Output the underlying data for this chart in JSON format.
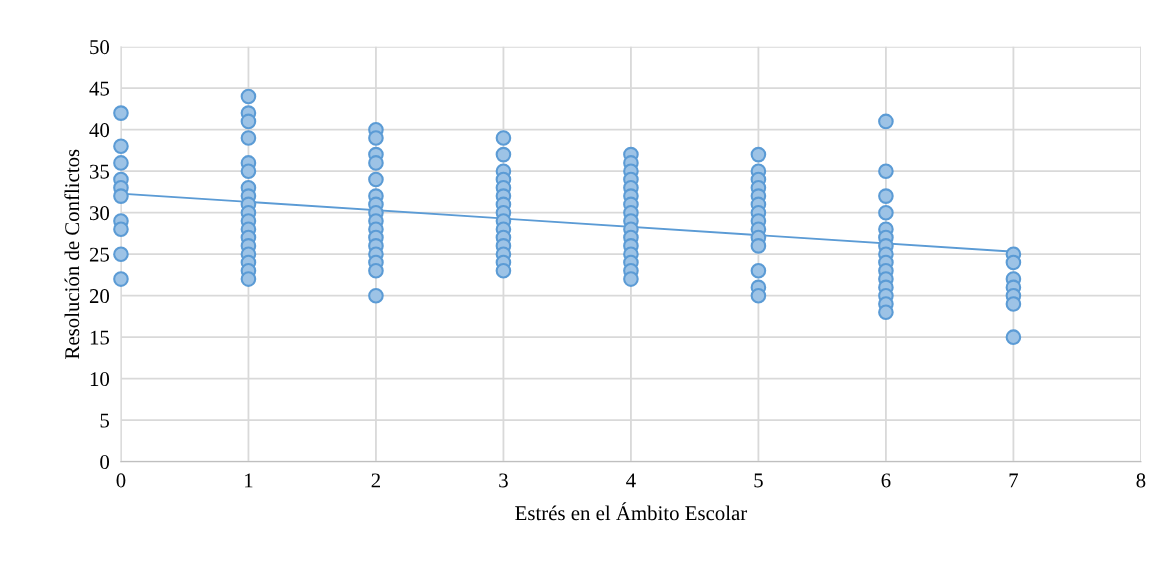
{
  "chart_data": {
    "type": "scatter",
    "xlabel": "Estrés en el Ámbito Escolar",
    "ylabel": "Resolución de Conflictos",
    "xlim": [
      0,
      8
    ],
    "xticks": [
      0,
      1,
      2,
      3,
      4,
      5,
      6,
      7,
      8
    ],
    "ylim": [
      0,
      50
    ],
    "yticks": [
      0,
      5,
      10,
      15,
      20,
      25,
      30,
      35,
      40,
      45,
      50
    ],
    "grid": true,
    "series": [
      {
        "marker": "circle",
        "color": "#9dc3e6",
        "x": [
          0,
          0,
          0,
          0,
          0,
          0,
          0,
          0,
          0,
          0,
          1,
          1,
          1,
          1,
          1,
          1,
          1,
          1,
          1,
          1,
          1,
          1,
          1,
          1,
          1,
          1,
          1,
          1,
          2,
          2,
          2,
          2,
          2,
          2,
          2,
          2,
          2,
          2,
          2,
          2,
          2,
          2,
          2,
          2,
          3,
          3,
          3,
          3,
          3,
          3,
          3,
          3,
          3,
          3,
          3,
          3,
          3,
          3,
          3,
          4,
          4,
          4,
          4,
          4,
          4,
          4,
          4,
          4,
          4,
          4,
          4,
          4,
          4,
          4,
          4,
          5,
          5,
          5,
          5,
          5,
          5,
          5,
          5,
          5,
          5,
          5,
          5,
          5,
          5,
          6,
          6,
          6,
          6,
          6,
          6,
          6,
          6,
          6,
          6,
          6,
          6,
          6,
          6,
          6,
          7,
          7,
          7,
          7,
          7,
          7,
          7
        ],
        "values": [
          42,
          38,
          36,
          34,
          33,
          32,
          29,
          28,
          25,
          22,
          44,
          42,
          41,
          39,
          36,
          35,
          33,
          32,
          31,
          30,
          29,
          28,
          27,
          26,
          25,
          24,
          23,
          22,
          40,
          39,
          37,
          36,
          34,
          32,
          31,
          30,
          29,
          28,
          27,
          26,
          25,
          24,
          23,
          20,
          39,
          37,
          35,
          34,
          33,
          32,
          31,
          30,
          29,
          28,
          27,
          26,
          25,
          24,
          23,
          37,
          36,
          35,
          34,
          33,
          32,
          31,
          30,
          29,
          28,
          27,
          26,
          25,
          24,
          23,
          22,
          37,
          35,
          34,
          33,
          32,
          31,
          30,
          29,
          28,
          27,
          26,
          23,
          21,
          20,
          41,
          35,
          32,
          30,
          28,
          27,
          26,
          25,
          24,
          23,
          22,
          21,
          20,
          19,
          18,
          25,
          24,
          22,
          21,
          20,
          19,
          15
        ]
      },
      {
        "type": "line",
        "color": "#5b9bd5",
        "x": [
          0,
          7
        ],
        "values": [
          32.3,
          25.3
        ]
      }
    ]
  }
}
